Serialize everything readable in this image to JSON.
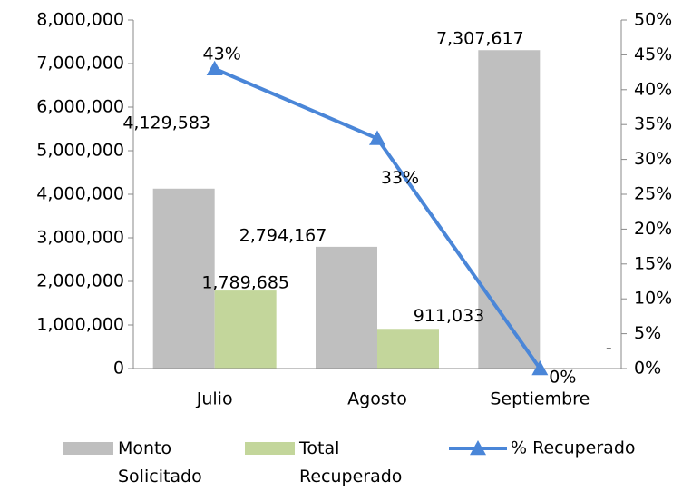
{
  "chart_data": {
    "type": "bar-line",
    "categories": [
      "Julio",
      "Agosto",
      "Septiembre"
    ],
    "series": [
      {
        "name": "Monto Solicitado",
        "type": "bar",
        "color": "#bfbfbf",
        "values": [
          4129583,
          2794167,
          7307617
        ],
        "value_labels": [
          "4,129,583",
          "2,794,167",
          "7,307,617"
        ]
      },
      {
        "name": "Total Recuperado",
        "type": "bar",
        "color": "#c3d69b",
        "values": [
          1789685,
          911033,
          0
        ],
        "value_labels": [
          "1,789,685",
          "911,033",
          "-"
        ]
      },
      {
        "name": "% Recuperado",
        "type": "line",
        "axis": "y2",
        "color": "#4a86d8",
        "values": [
          43,
          33,
          0
        ],
        "value_labels": [
          "43%",
          "33%",
          "0%"
        ]
      }
    ],
    "ylim": [
      0,
      8000000
    ],
    "yticks": [
      0,
      {
        "value": 1000000,
        "label": "1,000,000"
      },
      {
        "value": 2000000,
        "label": "2,000,000"
      },
      {
        "value": 3000000,
        "label": "3,000,000"
      },
      {
        "value": 4000000,
        "label": "4,000,000"
      },
      {
        "value": 5000000,
        "label": "5,000,000"
      },
      {
        "value": 6000000,
        "label": "6,000,000"
      },
      {
        "value": 7000000,
        "label": "7,000,000"
      },
      {
        "value": 8000000,
        "label": "8,000,000"
      }
    ],
    "y2lim": [
      0,
      50
    ],
    "y2ticks": [
      {
        "value": 0,
        "label": "0%"
      },
      {
        "value": 5,
        "label": "5%"
      },
      {
        "value": 10,
        "label": "10%"
      },
      {
        "value": 15,
        "label": "15%"
      },
      {
        "value": 20,
        "label": "20%"
      },
      {
        "value": 25,
        "label": "25%"
      },
      {
        "value": 30,
        "label": "30%"
      },
      {
        "value": 35,
        "label": "35%"
      },
      {
        "value": 40,
        "label": "40%"
      },
      {
        "value": 45,
        "label": "45%"
      },
      {
        "value": 50,
        "label": "50%"
      }
    ],
    "legend": "bottom"
  }
}
